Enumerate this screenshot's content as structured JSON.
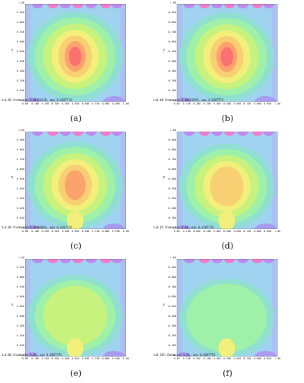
{
  "figure": {
    "y_axis_label": "Y",
    "y_ticks": [
      "1.00",
      "0.900",
      "0.800",
      "0.700",
      "0.600",
      "0.500",
      "0.400",
      "0.300",
      "0.200",
      "0.100",
      "0.00"
    ],
    "x_ticks": [
      "0.00",
      "0.100",
      "0.200",
      "0.300",
      "0.400",
      "0.500",
      "0.600",
      "0.700",
      "0.800",
      "0.900",
      "1.00"
    ],
    "panels": [
      {
        "caption": "(a)",
        "stats": "t=0.02:theta_min 0.00624129, max 0.0287774",
        "hot": 1.0
      },
      {
        "caption": "(b)",
        "stats": "t=0.04:theta_min 0.00624296, max 0.0287774",
        "hot": 0.95
      },
      {
        "caption": "(c)",
        "stats": "t=0.06:theta_min 0.00960661, max 0.0287774",
        "hot": 0.85
      },
      {
        "caption": "(d)",
        "stats": "t=0.07:theta_min 0.01, max 0.0287774",
        "hot": 0.7
      },
      {
        "caption": "(e)",
        "stats": "t=0.08:theta_min 0.01, max 0.0287774",
        "hot": 0.45
      },
      {
        "caption": "(f)",
        "stats": "t=0.135:theta_min 0.01, max 0.0287774",
        "hot": 0.2
      }
    ]
  }
}
